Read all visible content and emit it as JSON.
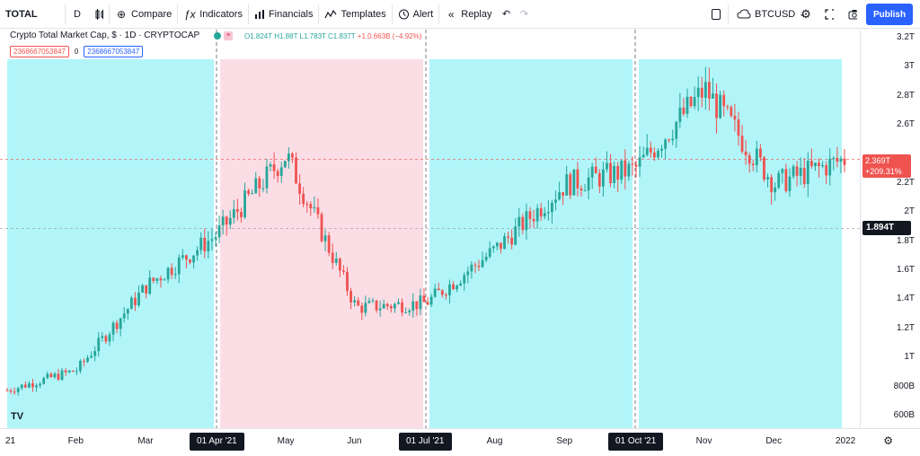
{
  "toolbar": {
    "symbol": "TOTAL",
    "interval": "D",
    "compare": "Compare",
    "indicators": "Indicators",
    "financials": "Financials",
    "templates": "Templates",
    "alert": "Alert",
    "replay": "Replay",
    "compare_symbol": "BTCUSD",
    "publish": "Publish"
  },
  "legend": {
    "title": "Crypto Total Market Cap, $ · 1D · CRYPTOCAP",
    "open": "O1.824T",
    "high": "H1.88T",
    "low": "L1.783T",
    "close": "C1.837T",
    "change": "+1.0.663B (−4.92%)",
    "value_red": "2368667053847",
    "value_zero": "0",
    "value_blue": "2368667053847"
  },
  "price_axis": {
    "labels": [
      "3.2T",
      "3T",
      "2.8T",
      "2.6T",
      "2.2T",
      "2T",
      "1.8T",
      "1.6T",
      "1.4T",
      "1.2T",
      "1T",
      "800B",
      "600B"
    ],
    "current_price": "2.369T",
    "current_change": "+209.31%",
    "crosshair_price": "1.894T"
  },
  "time_axis": {
    "labels": [
      "21",
      "Feb",
      "Mar",
      "May",
      "Jun",
      "Aug",
      "Sep",
      "Nov",
      "Dec",
      "2022"
    ],
    "flags": [
      "01 Apr '21",
      "01 Jul '21",
      "01 Oct '21"
    ]
  },
  "logo": "TV",
  "colors": {
    "bull_zone": "#b2f5f9",
    "bear_zone": "#fbdde6",
    "up_candle": "#26a69a",
    "down_candle": "#ef5350",
    "accent": "#2962ff"
  },
  "chart_data": {
    "type": "candlestick",
    "title": "Crypto Total Market Cap, $ · 1D · CRYPTOCAP",
    "yunit": "T",
    "ylim": [
      0.5,
      3.3
    ],
    "x": [
      "2021-01",
      "2021-02",
      "2021-03",
      "2021-04",
      "2021-05",
      "2021-06",
      "2021-07",
      "2021-08",
      "2021-09",
      "2021-10",
      "2021-11",
      "2021-12",
      "2022-01"
    ],
    "series": [
      {
        "values": [
          0.78,
          0.92,
          1.5,
          1.85,
          2.4,
          1.35,
          1.38,
          1.75,
          2.2,
          2.3,
          2.85,
          2.2,
          2.37
        ]
      }
    ],
    "zones": [
      {
        "from": "2021-01",
        "to": "2021-04",
        "type": "bullish"
      },
      {
        "from": "2021-04",
        "to": "2021-07",
        "type": "bearish"
      },
      {
        "from": "2021-07",
        "to": "2021-10",
        "type": "bullish"
      },
      {
        "from": "2021-10",
        "to": "2022-01",
        "type": "bullish"
      }
    ]
  }
}
